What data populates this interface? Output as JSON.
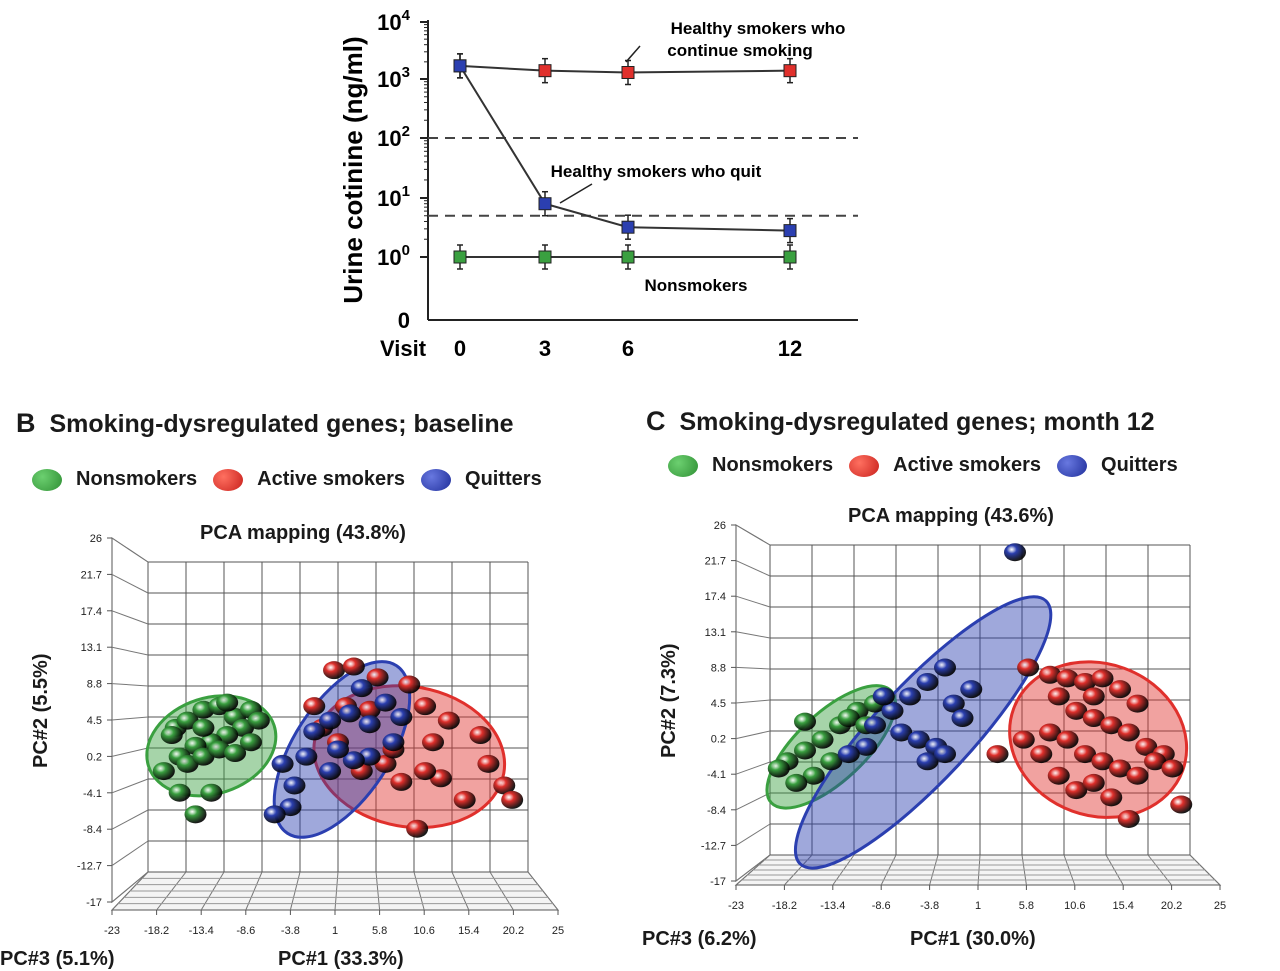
{
  "colors": {
    "green": "#3aa040",
    "red": "#e0302c",
    "blue": "#2b3fb0",
    "grid": "#555555"
  },
  "chart_data": [
    {
      "type": "line",
      "ylabel": "Urine cotinine (ng/ml)",
      "xlabel": "Visit",
      "x_ticks": [
        "0",
        "3",
        "6",
        "12"
      ],
      "y_ticks": [
        "10^4",
        "10^3",
        "10^2",
        "10^1",
        "10^0",
        "0"
      ],
      "yscale": "log",
      "reference_lines": [
        100,
        5
      ],
      "series": [
        {
          "name": "Healthy smokers who continue smoking",
          "color": "#e0302c",
          "x": [
            0,
            3,
            6,
            12
          ],
          "y": [
            1700,
            1400,
            1300,
            1400
          ]
        },
        {
          "name": "Healthy smokers who quit",
          "color": "#2b3fb0",
          "x": [
            0,
            3,
            6,
            12
          ],
          "y": [
            1700,
            8,
            3.2,
            2.8
          ]
        },
        {
          "name": "Nonsmokers",
          "color": "#3aa040",
          "x": [
            0,
            3,
            6,
            12
          ],
          "y": [
            1,
            1,
            1,
            1
          ]
        }
      ],
      "annotations": [
        [
          "Healthy smokers who",
          "continue smoking"
        ],
        [
          "Healthy smokers who quit"
        ],
        [
          "Nonsmokers"
        ]
      ]
    },
    {
      "type": "scatter",
      "panel": "B",
      "title": "Smoking-dysregulated genes; baseline",
      "subtitle": "PCA mapping (43.8%)",
      "ylabel": "PC#2 (5.5%)",
      "xlabel": "PC#1 (33.3%)",
      "zlabel": "PC#3 (5.1%)",
      "y_ticks": [
        "26",
        "21.7",
        "17.4",
        "13.1",
        "8.8",
        "4.5",
        "0.2",
        "-4.1",
        "-8.4",
        "-12.7",
        "-17"
      ],
      "x_ticks": [
        "-23",
        "-18.2",
        "-13.4",
        "-8.6",
        "-3.8",
        "1",
        "5.8",
        "10.6",
        "15.4",
        "20.2",
        "25"
      ],
      "legend": [
        "Nonsmokers",
        "Active smokers",
        "Quitters"
      ],
      "groups": [
        {
          "name": "Nonsmokers",
          "color": "#3aa040",
          "points": [
            [
              -19.5,
              3
            ],
            [
              -18,
              4
            ],
            [
              -16,
              5.5
            ],
            [
              -14,
              6
            ],
            [
              -12,
              4.5
            ],
            [
              -10,
              5.5
            ],
            [
              -11,
              3
            ],
            [
              -13,
              2
            ],
            [
              -15,
              1
            ],
            [
              -17,
              0.5
            ],
            [
              -19,
              -1
            ],
            [
              -21,
              -3
            ],
            [
              -18,
              -2
            ],
            [
              -16,
              -1
            ],
            [
              -14,
              0
            ],
            [
              -12,
              -0.5
            ],
            [
              -10,
              1
            ],
            [
              -9,
              4
            ],
            [
              -15,
              -6
            ],
            [
              -17,
              -9
            ],
            [
              -19,
              -6
            ],
            [
              -20,
              2
            ],
            [
              -13,
              6.5
            ],
            [
              -16,
              3
            ]
          ]
        },
        {
          "name": "Active smokers",
          "color": "#e0302c",
          "points": [
            [
              0.5,
              11
            ],
            [
              3,
              11.5
            ],
            [
              6,
              10
            ],
            [
              10,
              9
            ],
            [
              -2,
              6
            ],
            [
              2,
              6
            ],
            [
              5,
              5.5
            ],
            [
              12,
              6
            ],
            [
              15,
              4
            ],
            [
              19,
              2
            ],
            [
              20,
              -2
            ],
            [
              22,
              -5
            ],
            [
              23,
              -7
            ],
            [
              14,
              -4
            ],
            [
              12,
              -3
            ],
            [
              9,
              -4.5
            ],
            [
              7,
              -2
            ],
            [
              4,
              -3
            ],
            [
              11,
              -11
            ],
            [
              17,
              -7
            ],
            [
              8,
              0
            ],
            [
              1,
              1
            ],
            [
              -1,
              3
            ],
            [
              13,
              1
            ]
          ]
        },
        {
          "name": "Quitters",
          "color": "#2b3fb0",
          "points": [
            [
              -6,
              -2
            ],
            [
              -4.5,
              -5
            ],
            [
              -3,
              -1
            ],
            [
              -2,
              2.5
            ],
            [
              0,
              4
            ],
            [
              2.5,
              5
            ],
            [
              5,
              3.5
            ],
            [
              7,
              6.5
            ],
            [
              8,
              1
            ],
            [
              5,
              -1
            ],
            [
              3,
              -1.5
            ],
            [
              1,
              0
            ],
            [
              -5,
              -8
            ],
            [
              -7,
              -9
            ],
            [
              4,
              8.5
            ],
            [
              9,
              4.5
            ],
            [
              0,
              -3
            ]
          ]
        }
      ]
    },
    {
      "type": "scatter",
      "panel": "C",
      "title": "Smoking-dysregulated genes; month 12",
      "subtitle": "PCA mapping (43.6%)",
      "ylabel": "PC#2 (7.3%)",
      "xlabel": "PC#1 (30.0%)",
      "zlabel": "PC#3 (6.2%)",
      "y_ticks": [
        "26",
        "21.7",
        "17.4",
        "13.1",
        "8.8",
        "4.5",
        "0.2",
        "-4.1",
        "-8.4",
        "-12.7",
        "-17"
      ],
      "x_ticks": [
        "-23",
        "-18.2",
        "-13.4",
        "-8.6",
        "-3.8",
        "1",
        "5.8",
        "10.6",
        "15.4",
        "20.2",
        "25"
      ],
      "legend": [
        "Nonsmokers",
        "Active smokers",
        "Quitters"
      ],
      "groups": [
        {
          "name": "Nonsmokers",
          "color": "#3aa040",
          "points": [
            [
              -21,
              -4
            ],
            [
              -19,
              -2.5
            ],
            [
              -17,
              -1
            ],
            [
              -15,
              1
            ],
            [
              -13,
              3
            ],
            [
              -11,
              4
            ],
            [
              -16,
              -4
            ],
            [
              -18,
              -6
            ],
            [
              -20,
              -7
            ],
            [
              -22,
              -5
            ],
            [
              -14,
              2
            ],
            [
              -12,
              1
            ],
            [
              -19,
              1.5
            ]
          ]
        },
        {
          "name": "Active smokers",
          "color": "#e0302c",
          "points": [
            [
              6.5,
              9
            ],
            [
              9,
              8
            ],
            [
              11,
              7.5
            ],
            [
              13,
              7
            ],
            [
              15,
              7.5
            ],
            [
              17,
              6
            ],
            [
              19,
              4
            ],
            [
              10,
              5
            ],
            [
              12,
              3
            ],
            [
              14,
              2
            ],
            [
              16,
              1
            ],
            [
              18,
              0
            ],
            [
              20,
              -2
            ],
            [
              22,
              -3
            ],
            [
              9,
              0
            ],
            [
              11,
              -1
            ],
            [
              13,
              -3
            ],
            [
              15,
              -4
            ],
            [
              17,
              -5
            ],
            [
              19,
              -6
            ],
            [
              21,
              -4
            ],
            [
              23,
              -5
            ],
            [
              8,
              -3
            ],
            [
              10,
              -6
            ],
            [
              12,
              -8
            ],
            [
              14,
              -7
            ],
            [
              16,
              -9
            ],
            [
              24,
              -10
            ],
            [
              3,
              -3
            ],
            [
              18,
              -12
            ],
            [
              6,
              -1
            ],
            [
              14,
              5
            ]
          ]
        },
        {
          "name": "Quitters",
          "color": "#2b3fb0",
          "points": [
            [
              5,
              25
            ],
            [
              -3,
              9
            ],
            [
              -5,
              7
            ],
            [
              -7,
              5
            ],
            [
              -9,
              3
            ],
            [
              -11,
              1
            ],
            [
              -8,
              0
            ],
            [
              -6,
              -1
            ],
            [
              -4,
              -2
            ],
            [
              -2,
              4
            ],
            [
              0,
              6
            ],
            [
              -1,
              2
            ],
            [
              -5,
              -4
            ],
            [
              -3,
              -3
            ],
            [
              -12,
              -2
            ],
            [
              -10,
              5
            ],
            [
              -14,
              -3
            ]
          ]
        }
      ]
    }
  ],
  "panel_b": {
    "letter": "B",
    "title": "Smoking-dysregulated genes; baseline",
    "legend": {
      "nonsmokers": "Nonsmokers",
      "active": "Active smokers",
      "quitters": "Quitters"
    },
    "pca": "PCA mapping (43.8%)",
    "ylabel": "PC#2 (5.5%)",
    "zlabel": "PC#3 (5.1%)",
    "xlabel": "PC#1 (33.3%)"
  },
  "panel_c": {
    "letter": "C",
    "title": "Smoking-dysregulated genes; month 12",
    "legend": {
      "nonsmokers": "Nonsmokers",
      "active": "Active smokers",
      "quitters": "Quitters"
    },
    "pca": "PCA mapping (43.6%)",
    "ylabel": "PC#2 (7.3%)",
    "zlabel": "PC#3 (6.2%)",
    "xlabel": "PC#1 (30.0%)"
  }
}
